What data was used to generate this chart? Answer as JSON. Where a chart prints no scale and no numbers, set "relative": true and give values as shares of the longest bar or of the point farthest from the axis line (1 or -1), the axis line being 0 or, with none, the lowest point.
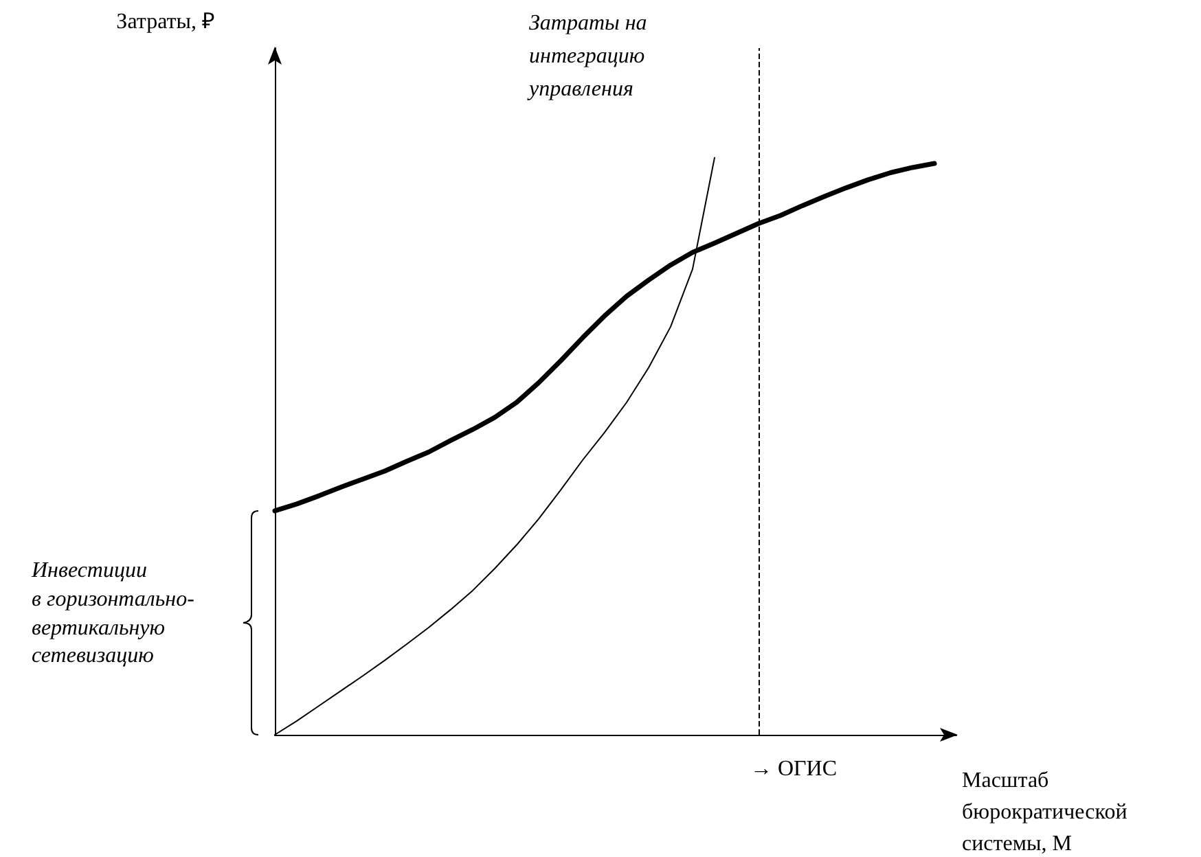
{
  "chart_data": {
    "type": "line",
    "relative": true,
    "xlabel": "Масштаб бюрократической системы, М",
    "categories": [
      null,
      null,
      null,
      null,
      null,
      null,
      null,
      null,
      null,
      null,
      null,
      null,
      null,
      null,
      null,
      null,
      null,
      null,
      null,
      null,
      null,
      null,
      null,
      null,
      null,
      null,
      null,
      null,
      null,
      null,
      null,
      null
    ],
    "series": [
      {
        "color": "#000000",
        "values": [
          0.388,
          0.4,
          0.414,
          0.429,
          0.443,
          0.457,
          0.474,
          0.49,
          0.51,
          0.529,
          0.55,
          0.576,
          0.61,
          0.648,
          0.688,
          0.726,
          0.76,
          0.788,
          0.814,
          0.836,
          0.852,
          0.869,
          0.886,
          0.9,
          0.917,
          0.933,
          0.948,
          0.962,
          0.974,
          0.983,
          0.99,
          null
        ]
      },
      {
        "name": "Затраты на интеграцию управления",
        "color": "#000000",
        "values": [
          0,
          0.024,
          0.05,
          0.076,
          0.102,
          0.129,
          0.157,
          0.186,
          0.217,
          0.25,
          0.288,
          0.329,
          0.374,
          0.424,
          0.476,
          0.524,
          0.576,
          0.636,
          0.707,
          0.807,
          1,
          null,
          null,
          null,
          null,
          null,
          null,
          null,
          null,
          null,
          null,
          null
        ]
      }
    ],
    "annotations": [
      "Инвестиции в горизонтально-вертикальную сетевизацию",
      "→ ОГИС",
      "Затраты, ₽"
    ],
    "legend": false,
    "grid": false,
    "marker": "none",
    "line_style": "solid"
  }
}
